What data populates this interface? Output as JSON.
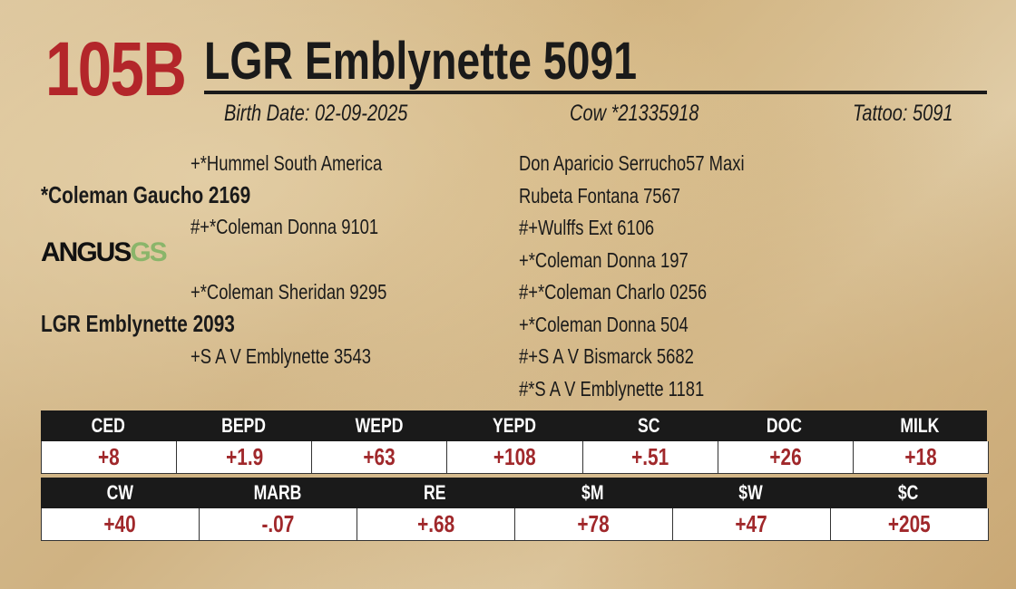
{
  "lot": "105B",
  "name": "LGR Emblynette 5091",
  "info": {
    "birth_date": "Birth Date: 02-09-2025",
    "registration": "Cow *21335918",
    "tattoo": "Tattoo: 5091"
  },
  "pedigree": {
    "sire_sire": "+*Hummel South America",
    "sire": "*Coleman Gaucho 2169",
    "sire_dam": "#+*Coleman Donna 9101",
    "dam_sire": "+*Coleman Sheridan 9295",
    "dam": "LGR Emblynette 2093",
    "dam_dam": "+S A V Emblynette 3543",
    "outer": [
      "Don Aparicio Serrucho57 Maxi",
      "Rubeta Fontana 7567",
      "#+Wulffs Ext 6106",
      "+*Coleman Donna 197",
      "#+*Coleman Charlo 0256",
      "+*Coleman Donna 504",
      "#+S A V Bismarck 5682",
      "#*S A V Emblynette 1181"
    ]
  },
  "logo": {
    "main": "ANGUS",
    "suffix": "GS"
  },
  "epd_tables": [
    {
      "headers": [
        "CED",
        "BEPD",
        "WEPD",
        "YEPD",
        "SC",
        "DOC",
        "MILK"
      ],
      "values": [
        "+8",
        "+1.9",
        "+63",
        "+108",
        "+.51",
        "+26",
        "+18"
      ]
    },
    {
      "headers": [
        "CW",
        "MARB",
        "RE",
        "$M",
        "$W",
        "$C"
      ],
      "values": [
        "+40",
        "-.07",
        "+.68",
        "+78",
        "+47",
        "+205"
      ]
    }
  ]
}
